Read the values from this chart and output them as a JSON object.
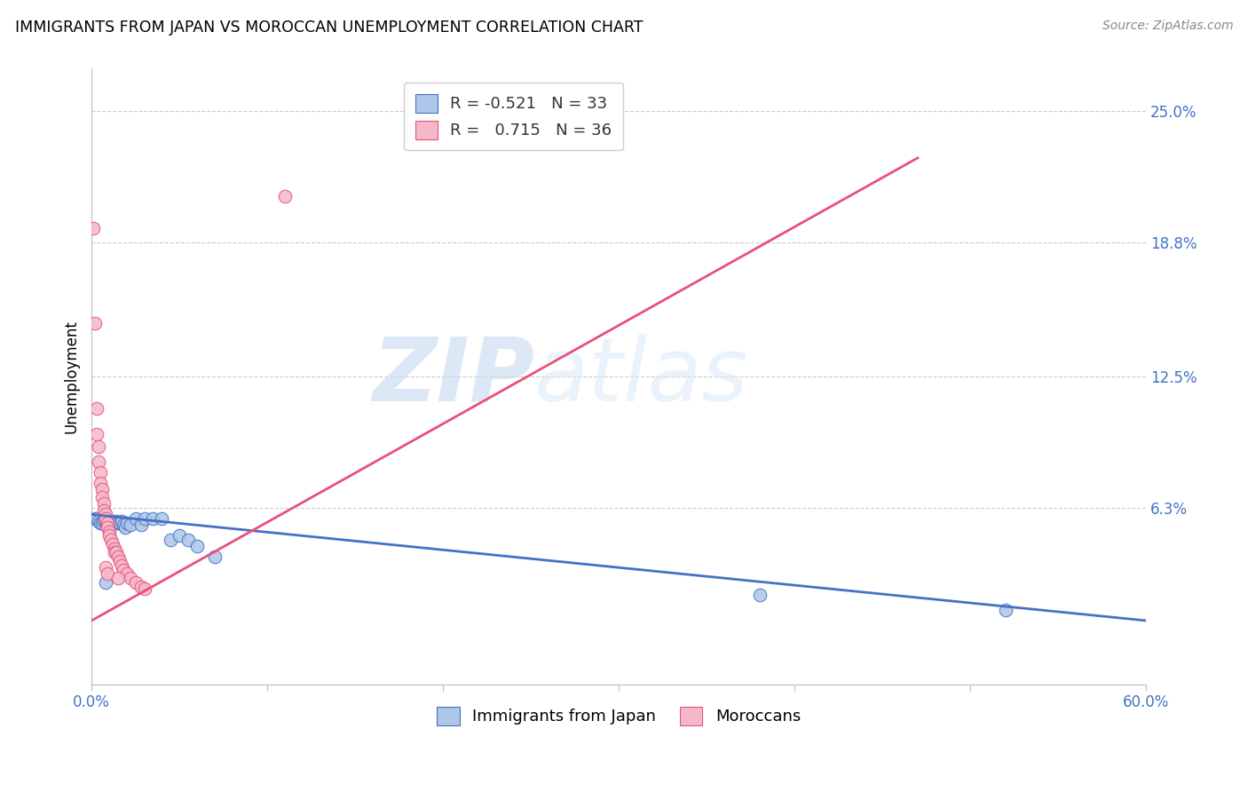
{
  "title": "IMMIGRANTS FROM JAPAN VS MOROCCAN UNEMPLOYMENT CORRELATION CHART",
  "source": "Source: ZipAtlas.com",
  "ylabel": "Unemployment",
  "xlim": [
    0.0,
    0.6
  ],
  "ylim": [
    -0.02,
    0.27
  ],
  "yticks": [
    0.063,
    0.125,
    0.188,
    0.25
  ],
  "ytick_labels": [
    "6.3%",
    "12.5%",
    "18.8%",
    "25.0%"
  ],
  "xticks": [
    0.0,
    0.1,
    0.2,
    0.3,
    0.4,
    0.5,
    0.6
  ],
  "xtick_labels": [
    "0.0%",
    "",
    "",
    "",
    "",
    "",
    "60.0%"
  ],
  "background_color": "#ffffff",
  "watermark_zip": "ZIP",
  "watermark_atlas": "atlas",
  "legend_R_japan": "-0.521",
  "legend_N_japan": "33",
  "legend_R_moroccan": "0.715",
  "legend_N_moroccan": "36",
  "japan_color": "#aec6e8",
  "moroccan_color": "#f4b8c8",
  "japan_line_color": "#4472c4",
  "moroccan_line_color": "#e8507a",
  "japan_scatter": [
    [
      0.002,
      0.058
    ],
    [
      0.003,
      0.058
    ],
    [
      0.004,
      0.057
    ],
    [
      0.005,
      0.056
    ],
    [
      0.006,
      0.056
    ],
    [
      0.007,
      0.057
    ],
    [
      0.008,
      0.057
    ],
    [
      0.009,
      0.056
    ],
    [
      0.01,
      0.057
    ],
    [
      0.011,
      0.056
    ],
    [
      0.012,
      0.057
    ],
    [
      0.013,
      0.056
    ],
    [
      0.014,
      0.057
    ],
    [
      0.015,
      0.056
    ],
    [
      0.016,
      0.056
    ],
    [
      0.017,
      0.057
    ],
    [
      0.018,
      0.055
    ],
    [
      0.019,
      0.054
    ],
    [
      0.02,
      0.056
    ],
    [
      0.022,
      0.055
    ],
    [
      0.025,
      0.058
    ],
    [
      0.028,
      0.055
    ],
    [
      0.03,
      0.058
    ],
    [
      0.035,
      0.058
    ],
    [
      0.04,
      0.058
    ],
    [
      0.045,
      0.048
    ],
    [
      0.05,
      0.05
    ],
    [
      0.055,
      0.048
    ],
    [
      0.06,
      0.045
    ],
    [
      0.07,
      0.04
    ],
    [
      0.38,
      0.022
    ],
    [
      0.52,
      0.015
    ],
    [
      0.008,
      0.028
    ]
  ],
  "moroccan_scatter": [
    [
      0.001,
      0.195
    ],
    [
      0.002,
      0.15
    ],
    [
      0.003,
      0.11
    ],
    [
      0.003,
      0.098
    ],
    [
      0.004,
      0.092
    ],
    [
      0.004,
      0.085
    ],
    [
      0.005,
      0.08
    ],
    [
      0.005,
      0.075
    ],
    [
      0.006,
      0.072
    ],
    [
      0.006,
      0.068
    ],
    [
      0.007,
      0.065
    ],
    [
      0.007,
      0.062
    ],
    [
      0.008,
      0.06
    ],
    [
      0.008,
      0.058
    ],
    [
      0.009,
      0.056
    ],
    [
      0.009,
      0.054
    ],
    [
      0.01,
      0.052
    ],
    [
      0.01,
      0.05
    ],
    [
      0.011,
      0.048
    ],
    [
      0.012,
      0.046
    ],
    [
      0.013,
      0.044
    ],
    [
      0.013,
      0.042
    ],
    [
      0.014,
      0.042
    ],
    [
      0.015,
      0.04
    ],
    [
      0.016,
      0.038
    ],
    [
      0.017,
      0.036
    ],
    [
      0.018,
      0.034
    ],
    [
      0.02,
      0.032
    ],
    [
      0.022,
      0.03
    ],
    [
      0.025,
      0.028
    ],
    [
      0.028,
      0.026
    ],
    [
      0.03,
      0.025
    ],
    [
      0.008,
      0.035
    ],
    [
      0.009,
      0.032
    ],
    [
      0.015,
      0.03
    ],
    [
      0.11,
      0.21
    ]
  ],
  "japan_trendline": [
    [
      0.0,
      0.06
    ],
    [
      0.6,
      0.01
    ]
  ],
  "moroccan_trendline": [
    [
      0.0,
      0.01
    ],
    [
      0.47,
      0.228
    ]
  ]
}
